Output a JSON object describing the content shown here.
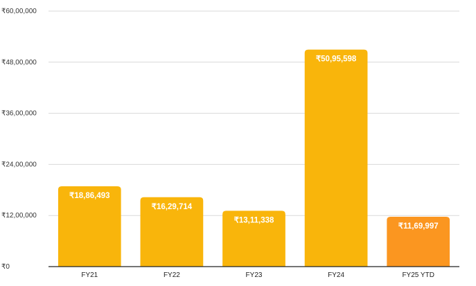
{
  "chart_data": {
    "type": "bar",
    "title": "",
    "xlabel": "",
    "ylabel": "",
    "categories": [
      "FY21",
      "FY22",
      "FY23",
      "FY24",
      "FY25 YTD"
    ],
    "values": [
      1886493,
      1629714,
      1311338,
      5095598,
      1169997
    ],
    "data_labels": [
      "₹18,86,493",
      "₹16,29,714",
      "₹13,11,338",
      "₹50,95,598",
      "₹11,69,997"
    ],
    "ylim": [
      0,
      6000000
    ],
    "y_ticks": [
      0,
      1200000,
      2400000,
      3600000,
      4800000,
      6000000
    ],
    "y_tick_labels": [
      "₹0",
      "₹12,00,000",
      "₹24,00,000",
      "₹36,00,000",
      "₹48,00,000",
      "₹60,00,000"
    ],
    "grid": true,
    "colors": [
      "#f9b50b",
      "#f9b50b",
      "#f9b50b",
      "#f9b50b",
      "#fb9620"
    ]
  }
}
